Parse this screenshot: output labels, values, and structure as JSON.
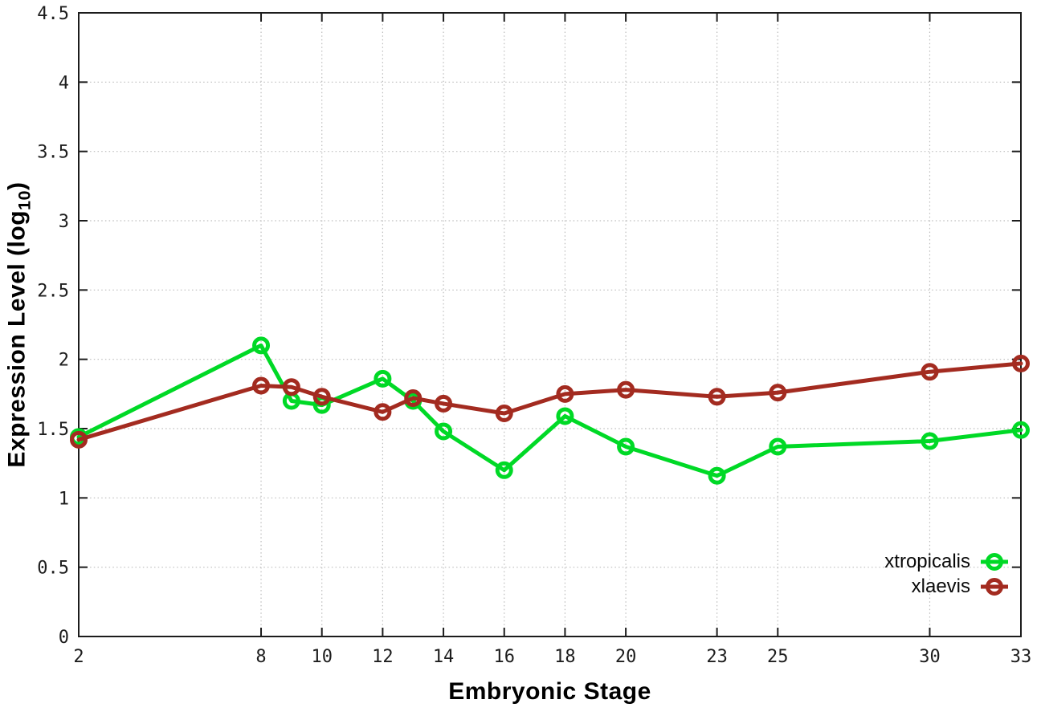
{
  "chart_data": {
    "type": "line",
    "title": "",
    "xlabel": "Embryonic Stage",
    "ylabel": "Expression Level (log10)",
    "ylabel_parts": {
      "main": "Expression Level (log",
      "sub": "10",
      "suffix": ")"
    },
    "xlim": [
      2,
      33
    ],
    "ylim": [
      0,
      4.5
    ],
    "grid": true,
    "legend_position": "inside bottom-right",
    "xticks": [
      2,
      8,
      10,
      12,
      14,
      16,
      18,
      20,
      23,
      25,
      30,
      33
    ],
    "yticks": [
      0,
      0.5,
      1,
      1.5,
      2,
      2.5,
      3,
      3.5,
      4,
      4.5
    ],
    "x": [
      2,
      8,
      9,
      10,
      12,
      13,
      14,
      16,
      18,
      20,
      23,
      25,
      30,
      33
    ],
    "series": [
      {
        "name": "xtropicalis",
        "color": "#00d926",
        "values": [
          1.44,
          2.1,
          1.7,
          1.67,
          1.86,
          1.7,
          1.48,
          1.2,
          1.59,
          1.37,
          1.16,
          1.37,
          1.41,
          1.49
        ]
      },
      {
        "name": "xlaevis",
        "color": "#a32b20",
        "values": [
          1.42,
          1.81,
          1.8,
          1.73,
          1.62,
          1.72,
          1.68,
          1.61,
          1.75,
          1.78,
          1.73,
          1.76,
          1.91,
          1.97
        ]
      }
    ],
    "colors": {
      "axis": "#1c1c1c",
      "grid": "#bcbcbc",
      "tick_label": "#1d1d1d"
    }
  }
}
